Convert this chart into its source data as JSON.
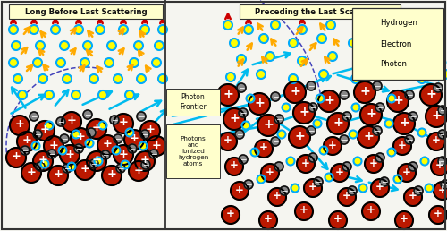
{
  "fig_width": 5.0,
  "fig_height": 2.58,
  "dpi": 100,
  "bg_color": "#f5f5f0",
  "border_color": "#333333",
  "title_left": "Long Before Last Scattering",
  "title_right": "Preceding the Last Scattering",
  "title_bg": "#ffffcc",
  "hydrogen_color": "#bb1800",
  "hydrogen_edge": "#000000",
  "electron_color": "#888888",
  "electron_edge": "#111111",
  "photon_color": "#ffff00",
  "photon_edge": "#00aaff",
  "arrow_red": "#cc0000",
  "arrow_yellow": "#ffaa00",
  "arrow_blue": "#00bbee",
  "photon_frontier_label": "Photon\nFrontier",
  "photons_label": "Photons\nand\nIonized\nhydrogen\natoms",
  "legend_items": [
    "Hydrogen",
    "Electron",
    "Photon"
  ],
  "legend_bg": "#ffffcc",
  "divX": 185
}
